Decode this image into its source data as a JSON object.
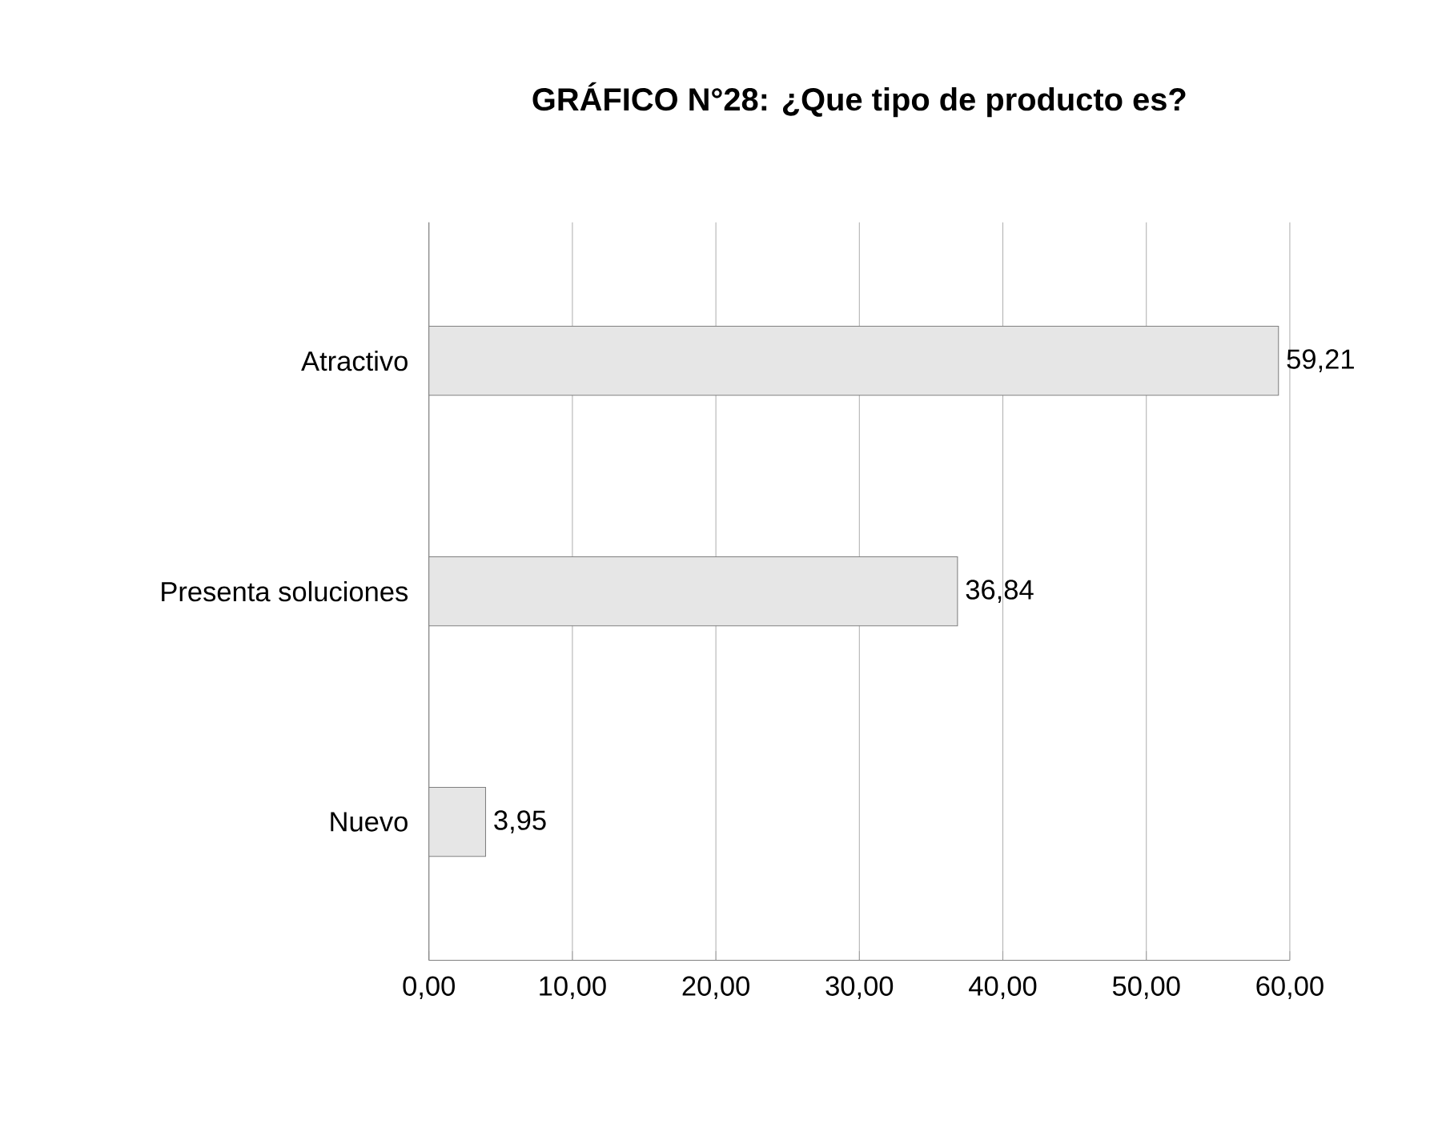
{
  "chart_data": {
    "type": "bar",
    "orientation": "horizontal",
    "title": "GRÁFICO N°28: ¿Que tipo de producto es?",
    "categories": [
      "Atractivo",
      "Presenta soluciones",
      "Nuevo"
    ],
    "values": [
      59.21,
      36.84,
      3.95
    ],
    "value_labels": [
      "59,21",
      "36,84",
      "3,95"
    ],
    "color": "#e6e6e6",
    "xlim": [
      0,
      60
    ],
    "xticks": [
      {
        "value": 0,
        "label": "0,00"
      },
      {
        "value": 10,
        "label": "10,00"
      },
      {
        "value": 20,
        "label": "20,00"
      },
      {
        "value": 30,
        "label": "30,00"
      },
      {
        "value": 40,
        "label": "40,00"
      },
      {
        "value": 50,
        "label": "50,00"
      },
      {
        "value": 60,
        "label": "60,00"
      }
    ],
    "grid": "x"
  }
}
